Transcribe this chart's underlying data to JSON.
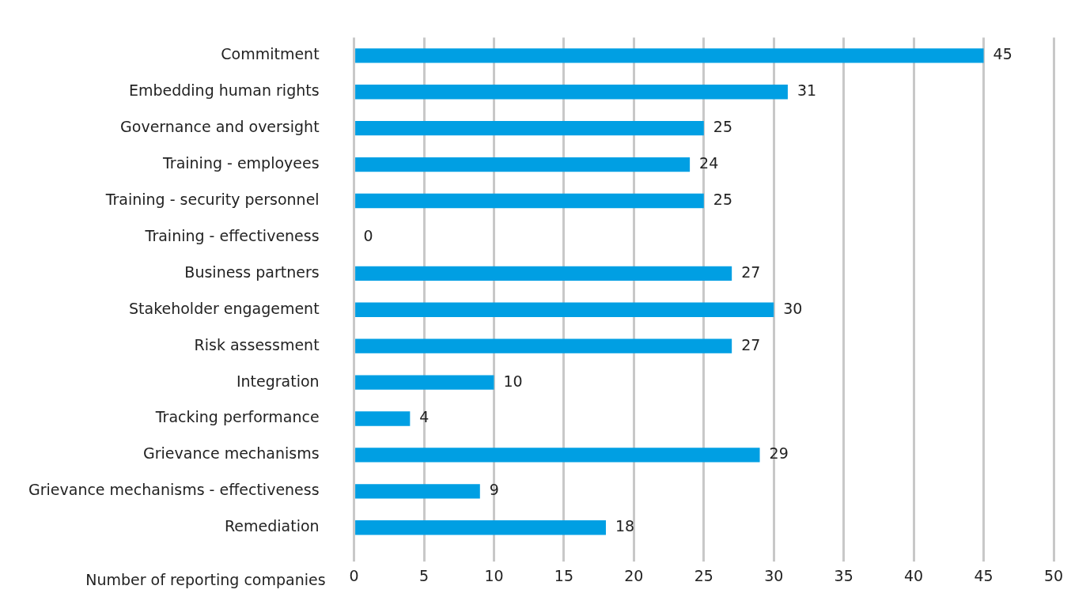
{
  "chart_data": {
    "type": "bar",
    "orientation": "horizontal",
    "xlabel": "Number of reporting companies",
    "categories": [
      "Commitment",
      "Embedding human rights",
      "Governance and oversight",
      "Training - employees",
      "Training - security personnel",
      "Training - effectiveness",
      "Business partners",
      "Stakeholder engagement",
      "Risk assessment",
      "Integration",
      "Tracking performance",
      "Grievance mechanisms",
      "Grievance mechanisms - effectiveness",
      "Remediation"
    ],
    "values": [
      45,
      31,
      25,
      24,
      25,
      0,
      27,
      30,
      27,
      10,
      4,
      29,
      9,
      18
    ],
    "color": "#009fe3",
    "xlim": [
      0,
      50
    ],
    "xticks": [
      0,
      5,
      10,
      15,
      20,
      25,
      30,
      35,
      40,
      45,
      50
    ],
    "grid": "x",
    "data_labels": true
  }
}
